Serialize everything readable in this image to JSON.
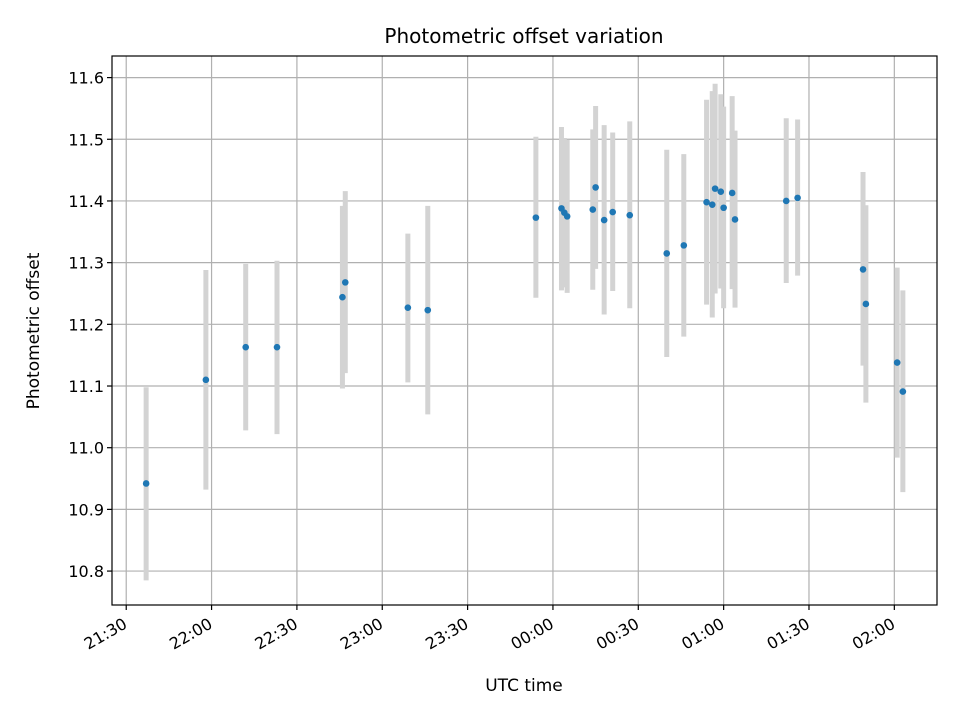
{
  "chart_data": {
    "type": "scatter",
    "title": "Photometric offset variation",
    "xlabel": "UTC time",
    "ylabel": "Photometric offset",
    "x_unit": "UTC time (HH:MM)",
    "xlim": [
      "21:25",
      "02:15"
    ],
    "ylim": [
      10.745,
      11.635
    ],
    "x_ticks": [
      "21:30",
      "22:00",
      "22:30",
      "23:00",
      "23:30",
      "00:00",
      "00:30",
      "01:00",
      "01:30",
      "02:00"
    ],
    "y_ticks": [
      10.8,
      10.9,
      11.0,
      11.1,
      11.2,
      11.3,
      11.4,
      11.5,
      11.6
    ],
    "y_tick_labels": [
      "10.8",
      "10.9",
      "11.0",
      "11.1",
      "11.2",
      "11.3",
      "11.4",
      "11.5",
      "11.6"
    ],
    "grid": true,
    "legend": "none",
    "colors": {
      "point": "#1f77b4",
      "errorbar": "#d3d3d3",
      "grid": "#b0b0b0"
    },
    "points": [
      {
        "t": "21:37",
        "y": 10.942,
        "lo": 10.785,
        "hi": 11.098
      },
      {
        "t": "21:58",
        "y": 11.11,
        "lo": 10.932,
        "hi": 11.288
      },
      {
        "t": "22:12",
        "y": 11.163,
        "lo": 11.028,
        "hi": 11.298
      },
      {
        "t": "22:23",
        "y": 11.163,
        "lo": 11.022,
        "hi": 11.303
      },
      {
        "t": "22:46",
        "y": 11.244,
        "lo": 11.096,
        "hi": 11.392
      },
      {
        "t": "22:47",
        "y": 11.268,
        "lo": 11.121,
        "hi": 11.416
      },
      {
        "t": "23:09",
        "y": 11.227,
        "lo": 11.106,
        "hi": 11.347
      },
      {
        "t": "23:16",
        "y": 11.223,
        "lo": 11.054,
        "hi": 11.392
      },
      {
        "t": "23:54",
        "y": 11.373,
        "lo": 11.243,
        "hi": 11.504
      },
      {
        "t": "00:03",
        "y": 11.388,
        "lo": 11.255,
        "hi": 11.52
      },
      {
        "t": "00:04",
        "y": 11.381,
        "lo": 11.26,
        "hi": 11.502
      },
      {
        "t": "00:05",
        "y": 11.375,
        "lo": 11.251,
        "hi": 11.499
      },
      {
        "t": "00:14",
        "y": 11.386,
        "lo": 11.256,
        "hi": 11.516
      },
      {
        "t": "00:15",
        "y": 11.422,
        "lo": 11.29,
        "hi": 11.554
      },
      {
        "t": "00:18",
        "y": 11.369,
        "lo": 11.216,
        "hi": 11.523
      },
      {
        "t": "00:21",
        "y": 11.382,
        "lo": 11.254,
        "hi": 11.511
      },
      {
        "t": "00:27",
        "y": 11.377,
        "lo": 11.226,
        "hi": 11.529
      },
      {
        "t": "00:40",
        "y": 11.315,
        "lo": 11.147,
        "hi": 11.483
      },
      {
        "t": "00:46",
        "y": 11.328,
        "lo": 11.18,
        "hi": 11.476
      },
      {
        "t": "00:54",
        "y": 11.398,
        "lo": 11.232,
        "hi": 11.564
      },
      {
        "t": "00:56",
        "y": 11.394,
        "lo": 11.211,
        "hi": 11.578
      },
      {
        "t": "00:57",
        "y": 11.42,
        "lo": 11.25,
        "hi": 11.59
      },
      {
        "t": "00:59",
        "y": 11.415,
        "lo": 11.258,
        "hi": 11.573
      },
      {
        "t": "01:00",
        "y": 11.389,
        "lo": 11.226,
        "hi": 11.553
      },
      {
        "t": "01:03",
        "y": 11.413,
        "lo": 11.257,
        "hi": 11.57
      },
      {
        "t": "01:04",
        "y": 11.37,
        "lo": 11.227,
        "hi": 11.514
      },
      {
        "t": "01:22",
        "y": 11.4,
        "lo": 11.267,
        "hi": 11.534
      },
      {
        "t": "01:26",
        "y": 11.405,
        "lo": 11.279,
        "hi": 11.532
      },
      {
        "t": "01:49",
        "y": 11.289,
        "lo": 11.133,
        "hi": 11.447
      },
      {
        "t": "01:50",
        "y": 11.233,
        "lo": 11.073,
        "hi": 11.393
      },
      {
        "t": "02:01",
        "y": 11.138,
        "lo": 10.984,
        "hi": 11.292
      },
      {
        "t": "02:03",
        "y": 11.091,
        "lo": 10.928,
        "hi": 11.255
      }
    ]
  }
}
